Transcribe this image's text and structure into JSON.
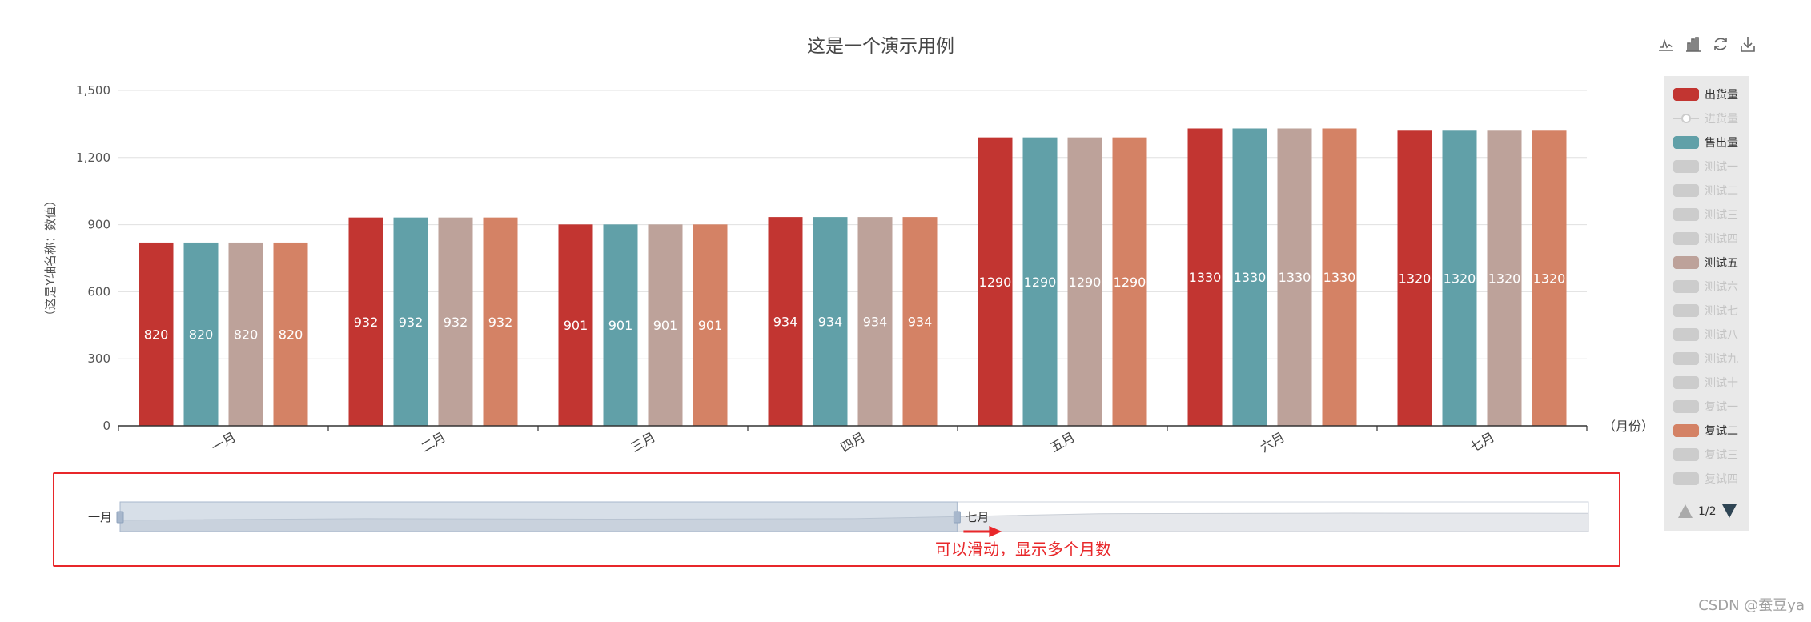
{
  "chart_data": {
    "type": "bar",
    "title": "这是一个演示用例",
    "xlabel": "（月份）",
    "ylabel": "（这是Y轴名称：数值）",
    "ylim": [
      0,
      1500
    ],
    "yticks": [
      0,
      300,
      600,
      900,
      1200,
      1500
    ],
    "ytick_labels": [
      "0",
      "300",
      "600",
      "900",
      "1,200",
      "1,500"
    ],
    "categories": [
      "一月",
      "二月",
      "三月",
      "四月",
      "五月",
      "六月",
      "七月"
    ],
    "grid": true,
    "series": [
      {
        "name": "出货量",
        "color": "#c23531",
        "values": [
          820,
          932,
          901,
          934,
          1290,
          1330,
          1320
        ]
      },
      {
        "name": "售出量",
        "color": "#61a0a8",
        "values": [
          820,
          932,
          901,
          934,
          1290,
          1330,
          1320
        ]
      },
      {
        "name": "测试五",
        "color": "#bda29a",
        "values": [
          820,
          932,
          901,
          934,
          1290,
          1330,
          1320
        ]
      },
      {
        "name": "复试二",
        "color": "#d48265",
        "values": [
          820,
          932,
          901,
          934,
          1290,
          1330,
          1320
        ]
      }
    ]
  },
  "legend": {
    "items": [
      {
        "label": "出货量",
        "color": "#c23531",
        "active": true,
        "shape": "box"
      },
      {
        "label": "进货量",
        "color": "#cccccc",
        "active": false,
        "shape": "line"
      },
      {
        "label": "售出量",
        "color": "#61a0a8",
        "active": true,
        "shape": "box"
      },
      {
        "label": "测试一",
        "color": "#cccccc",
        "active": false,
        "shape": "box"
      },
      {
        "label": "测试二",
        "color": "#cccccc",
        "active": false,
        "shape": "box"
      },
      {
        "label": "测试三",
        "color": "#cccccc",
        "active": false,
        "shape": "box"
      },
      {
        "label": "测试四",
        "color": "#cccccc",
        "active": false,
        "shape": "box"
      },
      {
        "label": "测试五",
        "color": "#bda29a",
        "active": true,
        "shape": "box"
      },
      {
        "label": "测试六",
        "color": "#cccccc",
        "active": false,
        "shape": "box"
      },
      {
        "label": "测试七",
        "color": "#cccccc",
        "active": false,
        "shape": "box"
      },
      {
        "label": "测试八",
        "color": "#cccccc",
        "active": false,
        "shape": "box"
      },
      {
        "label": "测试九",
        "color": "#cccccc",
        "active": false,
        "shape": "box"
      },
      {
        "label": "测试十",
        "color": "#cccccc",
        "active": false,
        "shape": "box"
      },
      {
        "label": "复试一",
        "color": "#cccccc",
        "active": false,
        "shape": "box"
      },
      {
        "label": "复试二",
        "color": "#d48265",
        "active": true,
        "shape": "box"
      },
      {
        "label": "复试三",
        "color": "#cccccc",
        "active": false,
        "shape": "box"
      },
      {
        "label": "复试四",
        "color": "#cccccc",
        "active": false,
        "shape": "box"
      }
    ],
    "page_text": "1/2"
  },
  "toolbox": {
    "icons": [
      "line-chart-icon",
      "bar-chart-icon",
      "refresh-icon",
      "download-icon"
    ]
  },
  "datazoom": {
    "start_label": "一月",
    "end_label": "七月",
    "range_percent": [
      0,
      57
    ]
  },
  "annotation": {
    "text": "可以滑动，显示多个月数"
  },
  "watermark": "CSDN @蚕豆ya",
  "colors": {
    "axis": "#333333",
    "grid": "#e0e0e0",
    "annotation": "#e8272a",
    "legend_bg": "#e9e9e9"
  }
}
